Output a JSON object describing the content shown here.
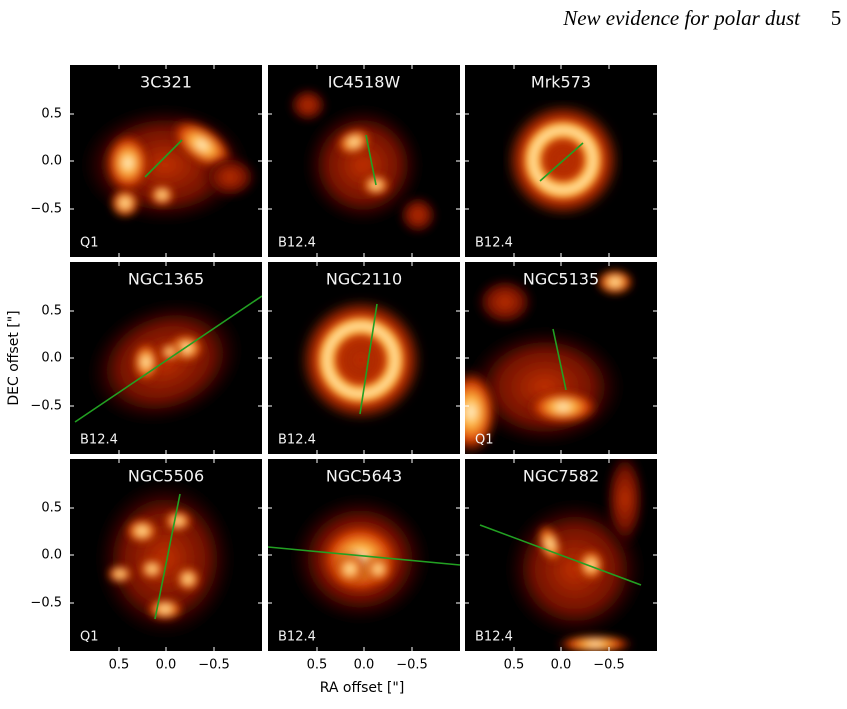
{
  "header": {
    "title": "New evidence for polar dust",
    "page": "5"
  },
  "figure": {
    "panels": [
      {
        "name": "3C321",
        "filter": "Q1"
      },
      {
        "name": "IC4518W",
        "filter": "B12.4"
      },
      {
        "name": "Mrk573",
        "filter": "B12.4"
      },
      {
        "name": "NGC1365",
        "filter": "B12.4"
      },
      {
        "name": "NGC2110",
        "filter": "B12.4"
      },
      {
        "name": "NGC5135",
        "filter": "Q1"
      },
      {
        "name": "NGC5506",
        "filter": "Q1"
      },
      {
        "name": "NGC5643",
        "filter": "B12.4"
      },
      {
        "name": "NGC7582",
        "filter": "B12.4"
      }
    ],
    "y_axis": {
      "label": "DEC offset [\"]",
      "ticks": [
        "0.5",
        "0.0",
        "−0.5"
      ]
    },
    "x_axis": {
      "label": "RA offset [\"]",
      "ticks": [
        "0.5",
        "0.0",
        "−0.5"
      ]
    }
  }
}
